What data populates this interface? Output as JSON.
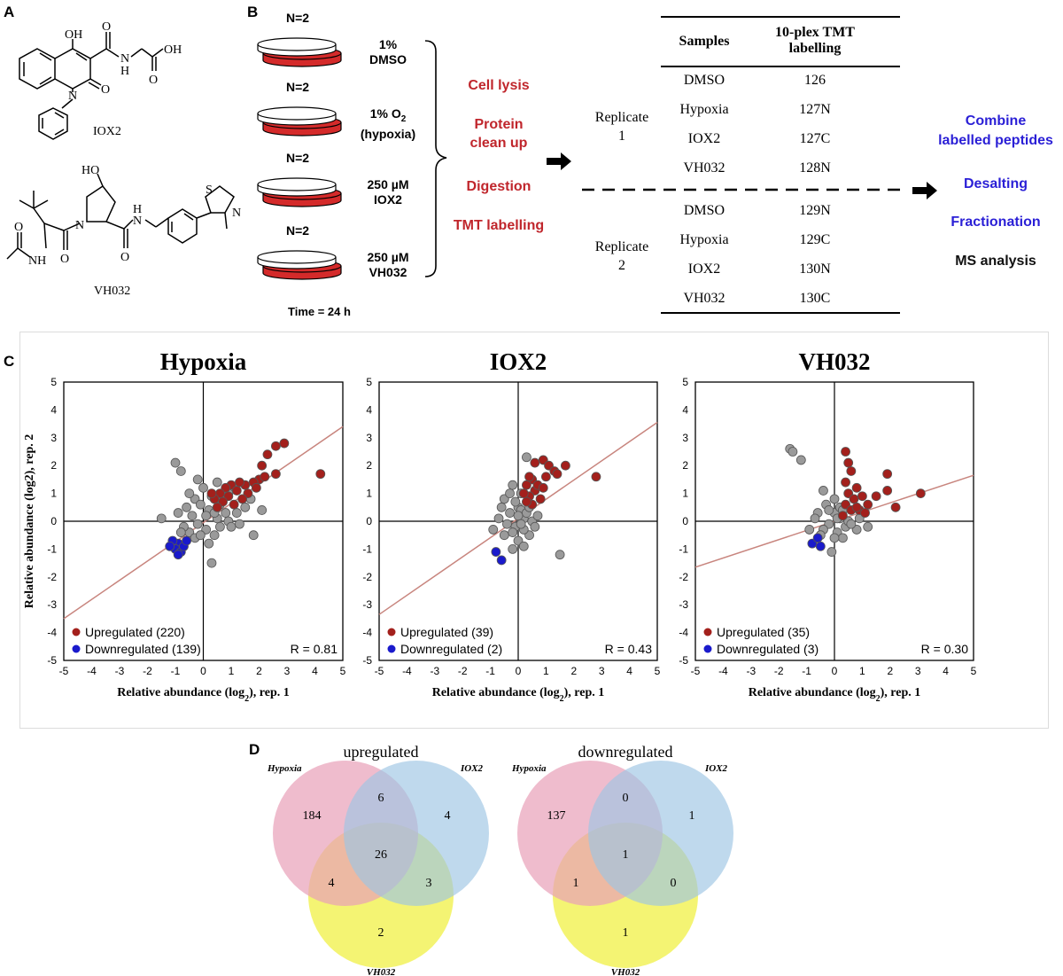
{
  "panel_labels": {
    "a": "A",
    "b": "B",
    "c": "C",
    "d": "D"
  },
  "panel_a": {
    "compound1": {
      "name": "IOX2",
      "atoms": {
        "oh_top": "OH",
        "n_amide": "N",
        "h_amide": "H",
        "oh_acid": "OH",
        "o_acid": "O",
        "o_amide": "O",
        "n_ring": "N",
        "o_ring": "O"
      }
    },
    "compound2": {
      "name": "VH032",
      "atoms": {
        "ho": "HO",
        "s": "S",
        "n_thiazole": "N",
        "n_pyr": "N",
        "h_amide": "H",
        "n_amide": "N",
        "o1": "O",
        "o2": "O",
        "nh": "NH",
        "o3": "O"
      }
    }
  },
  "panel_b": {
    "dishes": [
      {
        "n": "N=2",
        "condition": [
          "1%",
          "DMSO"
        ]
      },
      {
        "n": "N=2",
        "condition": [
          "1%  O",
          "(hypoxia)"
        ],
        "subscript": "2"
      },
      {
        "n": "N=2",
        "condition": [
          "250 µM",
          "IOX2"
        ]
      },
      {
        "n": "N=2",
        "condition": [
          "250 µM",
          "VH032"
        ]
      }
    ],
    "time": "Time = 24 h",
    "steps": [
      "Cell lysis",
      "Protein clean up",
      "Digestion",
      "TMT labelling"
    ],
    "steps_lines": [
      [
        "Cell lysis"
      ],
      [
        "Protein",
        "clean up"
      ],
      [
        "Digestion"
      ],
      [
        "TMT labelling"
      ]
    ],
    "table": {
      "header_samples": "Samples",
      "header_tmt": [
        "10-plex TMT",
        "labelling"
      ],
      "replicate1_label": [
        "Replicate",
        "1"
      ],
      "replicate2_label": [
        "Replicate",
        "2"
      ],
      "rows": [
        {
          "sample": "DMSO",
          "tag": "126"
        },
        {
          "sample": "Hypoxia",
          "tag": "127N"
        },
        {
          "sample": "IOX2",
          "tag": "127C"
        },
        {
          "sample": "VH032",
          "tag": "128N"
        },
        {
          "sample": "DMSO",
          "tag": "129N"
        },
        {
          "sample": "Hypoxia",
          "tag": "129C"
        },
        {
          "sample": "IOX2",
          "tag": "130N"
        },
        {
          "sample": "VH032",
          "tag": "130C"
        }
      ]
    },
    "right_steps": {
      "combine": [
        "Combine",
        "labelled peptides"
      ],
      "desalting": "Desalting",
      "fractionation": "Fractionation",
      "ms": "MS analysis"
    },
    "colors": {
      "process_red": "#c0262c",
      "step_blue": "#2a1fd6"
    }
  },
  "chart_data": [
    {
      "type": "scatter",
      "title": "Hypoxia",
      "xlabel": "Relative abundance (log2), rep. 1",
      "ylabel": "Relative abundance (log2), rep. 2",
      "xlim": [
        -5,
        5
      ],
      "ylim": [
        -5,
        5
      ],
      "xticks": [
        "-5",
        "-4",
        "-3",
        "-2",
        "-1",
        "0",
        "1",
        "2",
        "3",
        "4",
        "5"
      ],
      "yticks": [
        "5",
        "4",
        "3",
        "2",
        "1",
        "0",
        "-1",
        "-2",
        "-3",
        "-4",
        "-5"
      ],
      "fit_slope": 0.69,
      "fit_intercept": -0.05,
      "legend": {
        "up": "Upregulated (220)",
        "down": "Downregulated (139)"
      },
      "r_label": "R = 0.81",
      "upregulated": [
        [
          2.9,
          2.8
        ],
        [
          2.6,
          2.7
        ],
        [
          2.3,
          2.4
        ],
        [
          2.1,
          2.0
        ],
        [
          4.2,
          1.7
        ],
        [
          2.6,
          1.7
        ],
        [
          2.0,
          1.5
        ],
        [
          1.8,
          1.4
        ],
        [
          1.5,
          1.3
        ],
        [
          1.3,
          1.4
        ],
        [
          1.0,
          1.3
        ],
        [
          0.8,
          1.2
        ],
        [
          1.2,
          1.1
        ],
        [
          0.6,
          1.0
        ],
        [
          0.9,
          0.9
        ],
        [
          1.6,
          1.0
        ],
        [
          0.4,
          0.8
        ],
        [
          0.7,
          0.7
        ],
        [
          1.1,
          0.6
        ],
        [
          1.9,
          1.2
        ],
        [
          2.2,
          1.6
        ],
        [
          0.5,
          0.5
        ],
        [
          1.4,
          0.8
        ],
        [
          0.3,
          1.0
        ]
      ],
      "downregulated": [
        [
          -0.9,
          -0.8
        ],
        [
          -1.0,
          -1.0
        ],
        [
          -0.8,
          -1.1
        ],
        [
          -0.7,
          -0.9
        ],
        [
          -1.1,
          -0.7
        ],
        [
          -0.9,
          -1.2
        ],
        [
          -0.6,
          -0.7
        ],
        [
          -1.2,
          -0.9
        ]
      ],
      "unchanged": [
        [
          -1.0,
          2.1
        ],
        [
          -0.8,
          1.8
        ],
        [
          -1.5,
          0.1
        ],
        [
          0.3,
          -1.5
        ],
        [
          1.8,
          -0.5
        ],
        [
          -0.3,
          0.8
        ],
        [
          0.2,
          0.4
        ],
        [
          0.5,
          0.1
        ],
        [
          -0.2,
          -0.1
        ],
        [
          0.1,
          -0.3
        ],
        [
          -0.5,
          -0.4
        ],
        [
          0.8,
          0.3
        ],
        [
          -0.1,
          0.6
        ],
        [
          0.6,
          -0.2
        ],
        [
          0.3,
          0.9
        ],
        [
          -0.4,
          0.2
        ],
        [
          0.9,
          0.0
        ],
        [
          1.2,
          0.3
        ],
        [
          -0.6,
          0.5
        ],
        [
          0.0,
          1.2
        ],
        [
          0.4,
          -0.5
        ],
        [
          -0.7,
          -0.2
        ],
        [
          1.5,
          0.5
        ],
        [
          0.7,
          0.8
        ],
        [
          -0.2,
          1.5
        ],
        [
          0.2,
          -0.8
        ],
        [
          1.0,
          -0.2
        ],
        [
          -0.9,
          0.3
        ],
        [
          0.5,
          1.4
        ],
        [
          -0.3,
          -0.6
        ],
        [
          1.7,
          0.8
        ],
        [
          0.1,
          0.2
        ],
        [
          -0.1,
          -0.5
        ],
        [
          0.6,
          0.6
        ],
        [
          -0.5,
          1.0
        ],
        [
          1.3,
          -0.1
        ],
        [
          0.9,
          1.0
        ],
        [
          -0.8,
          -0.4
        ],
        [
          0.4,
          0.3
        ],
        [
          2.1,
          0.4
        ]
      ]
    },
    {
      "type": "scatter",
      "title": "IOX2",
      "xlabel": "Relative abundance (log2), rep. 1",
      "xlim": [
        -5,
        5
      ],
      "ylim": [
        -5,
        5
      ],
      "xticks": [
        "-5",
        "-4",
        "-3",
        "-2",
        "-1",
        "0",
        "1",
        "2",
        "3",
        "4",
        "5"
      ],
      "yticks": [
        "5",
        "4",
        "3",
        "2",
        "1",
        "0",
        "-1",
        "-2",
        "-3",
        "-4",
        "-5"
      ],
      "fit_slope": 0.69,
      "fit_intercept": 0.1,
      "legend": {
        "up": "Upregulated (39)",
        "down": "Downregulated (2)"
      },
      "r_label": "R = 0.43",
      "upregulated": [
        [
          0.9,
          2.2
        ],
        [
          1.1,
          2.0
        ],
        [
          0.6,
          2.1
        ],
        [
          1.3,
          1.8
        ],
        [
          1.7,
          2.0
        ],
        [
          1.0,
          1.6
        ],
        [
          2.8,
          1.6
        ],
        [
          0.5,
          1.5
        ],
        [
          1.4,
          1.7
        ],
        [
          0.3,
          1.3
        ],
        [
          0.6,
          1.1
        ],
        [
          0.4,
          0.9
        ],
        [
          0.8,
          0.8
        ],
        [
          0.5,
          0.6
        ],
        [
          0.3,
          0.7
        ],
        [
          0.7,
          1.3
        ],
        [
          0.9,
          1.2
        ],
        [
          0.2,
          1.0
        ],
        [
          0.4,
          1.6
        ]
      ],
      "downregulated": [
        [
          -0.6,
          -1.4
        ],
        [
          -0.8,
          -1.1
        ]
      ],
      "unchanged": [
        [
          0.3,
          2.3
        ],
        [
          -0.2,
          1.3
        ],
        [
          -0.5,
          0.8
        ],
        [
          0.0,
          0.5
        ],
        [
          0.2,
          0.1
        ],
        [
          -0.1,
          -0.2
        ],
        [
          0.4,
          -0.5
        ],
        [
          -0.4,
          -0.1
        ],
        [
          0.1,
          0.4
        ],
        [
          -0.3,
          0.3
        ],
        [
          0.5,
          0.0
        ],
        [
          0.0,
          -0.7
        ],
        [
          -0.2,
          -1.0
        ],
        [
          1.5,
          -1.2
        ],
        [
          -0.7,
          0.1
        ],
        [
          0.2,
          -0.3
        ],
        [
          -0.1,
          0.7
        ],
        [
          0.3,
          0.3
        ],
        [
          -0.5,
          -0.5
        ],
        [
          0.6,
          -0.2
        ],
        [
          0.1,
          1.0
        ],
        [
          -0.9,
          -0.3
        ],
        [
          0.0,
          0.2
        ],
        [
          -0.2,
          -0.4
        ],
        [
          0.4,
          0.5
        ],
        [
          -0.3,
          1.0
        ],
        [
          0.2,
          -0.9
        ],
        [
          0.7,
          0.2
        ],
        [
          -0.6,
          0.5
        ],
        [
          0.1,
          -0.1
        ]
      ]
    },
    {
      "type": "scatter",
      "title": "VH032",
      "xlabel": "Relative abundance (log2), rep. 1",
      "xlim": [
        -5,
        5
      ],
      "ylim": [
        -5,
        5
      ],
      "xticks": [
        "-5",
        "-4",
        "-3",
        "-2",
        "-1",
        "0",
        "1",
        "2",
        "3",
        "4",
        "5"
      ],
      "yticks": [
        "5",
        "4",
        "3",
        "2",
        "1",
        "0",
        "-1",
        "-2",
        "-3",
        "-4",
        "-5"
      ],
      "fit_slope": 0.33,
      "fit_intercept": 0.0,
      "legend": {
        "up": "Upregulated (35)",
        "down": "Downregulated (3)"
      },
      "r_label": "R = 0.30",
      "upregulated": [
        [
          0.4,
          2.5
        ],
        [
          0.5,
          2.1
        ],
        [
          0.6,
          1.8
        ],
        [
          1.9,
          1.7
        ],
        [
          0.4,
          1.4
        ],
        [
          0.8,
          1.2
        ],
        [
          1.9,
          1.1
        ],
        [
          3.1,
          1.0
        ],
        [
          0.5,
          1.0
        ],
        [
          1.0,
          0.9
        ],
        [
          1.5,
          0.9
        ],
        [
          0.7,
          0.8
        ],
        [
          2.2,
          0.5
        ],
        [
          0.4,
          0.6
        ],
        [
          0.9,
          0.4
        ],
        [
          1.2,
          0.6
        ],
        [
          0.6,
          0.4
        ],
        [
          1.1,
          0.3
        ],
        [
          0.3,
          0.2
        ],
        [
          0.8,
          0.5
        ]
      ],
      "downregulated": [
        [
          -0.8,
          -0.8
        ],
        [
          -0.6,
          -0.6
        ],
        [
          -0.5,
          -0.9
        ]
      ],
      "unchanged": [
        [
          -1.6,
          2.6
        ],
        [
          -1.5,
          2.5
        ],
        [
          -1.2,
          2.2
        ],
        [
          -0.4,
          1.1
        ],
        [
          0.0,
          0.8
        ],
        [
          -0.6,
          0.3
        ],
        [
          0.2,
          0.1
        ],
        [
          -0.2,
          -0.1
        ],
        [
          0.1,
          -0.4
        ],
        [
          -0.4,
          -0.3
        ],
        [
          0.3,
          -0.6
        ],
        [
          -0.1,
          -1.1
        ],
        [
          0.4,
          -0.2
        ],
        [
          -0.7,
          0.1
        ],
        [
          0.0,
          0.3
        ],
        [
          0.2,
          0.5
        ],
        [
          -0.3,
          0.6
        ],
        [
          0.5,
          0.0
        ],
        [
          0.8,
          -0.3
        ],
        [
          -0.5,
          -0.5
        ],
        [
          0.1,
          0.1
        ],
        [
          0.6,
          -0.1
        ],
        [
          -0.2,
          0.4
        ],
        [
          0.0,
          -0.6
        ],
        [
          0.3,
          0.4
        ],
        [
          1.2,
          -0.2
        ],
        [
          -0.9,
          -0.3
        ],
        [
          0.9,
          0.1
        ]
      ]
    }
  ],
  "panel_d": {
    "up": {
      "title": "upregulated",
      "labels": {
        "a": "Hypoxia",
        "b": "IOX2",
        "c": "VH032"
      },
      "counts": {
        "a_only": "184",
        "ab": "6",
        "b_only": "4",
        "abc": "26",
        "ac": "4",
        "bc": "3",
        "c_only": "2"
      }
    },
    "down": {
      "title": "downregulated",
      "labels": {
        "a": "Hypoxia",
        "b": "IOX2",
        "c": "VH032"
      },
      "counts": {
        "a_only": "137",
        "ab": "0",
        "b_only": "1",
        "abc": "1",
        "ac": "1",
        "bc": "0",
        "c_only": "1"
      }
    },
    "colors": {
      "pink": "#e8a0b8",
      "blue": "#9cc4e4",
      "yellow": "#f2f25a"
    }
  },
  "scatter_colors": {
    "up": "#a3201c",
    "down": "#1a1acc",
    "unchanged": "#9a9a9a",
    "fit": "#c8857e"
  }
}
